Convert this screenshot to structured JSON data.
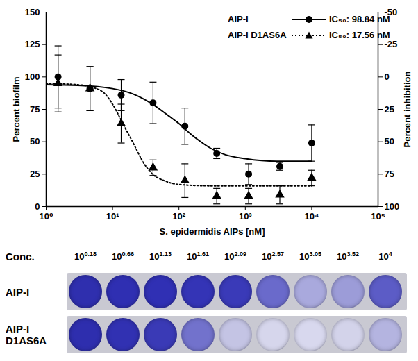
{
  "chart_data": {
    "type": "scatter",
    "x_label": "S. epidermidis AIPs [nM]",
    "y_label": "Percent biofilm",
    "y2_label": "Percent inhibition",
    "log": "x",
    "grid": false,
    "legend": "top-right",
    "xlim": [
      1,
      100000
    ],
    "xticks": [
      {
        "value": 1,
        "label": "10⁰"
      },
      {
        "value": 10,
        "label": "10¹"
      },
      {
        "value": 100,
        "label": "10²"
      },
      {
        "value": 1000,
        "label": "10³"
      },
      {
        "value": 10000,
        "label": "10⁴"
      },
      {
        "value": 100000,
        "label": "10⁵"
      }
    ],
    "ylim": [
      0,
      150
    ],
    "yticks": [
      0,
      50,
      100,
      150,
      25,
      75,
      125
    ],
    "y2lim": [
      100,
      -50
    ],
    "y2ticks": [
      -50,
      -25,
      0,
      25,
      50,
      75,
      100
    ],
    "x": [
      1.51,
      4.57,
      13.49,
      40.74,
      123.0,
      371.5,
      1122,
      3311,
      10000
    ],
    "series": [
      {
        "name": "AIP-I",
        "color": "#000000",
        "marker": "circle",
        "line_style": "solid",
        "ic50_label": "IC₅₀: 98.84 nM",
        "values": [
          100,
          91,
          86,
          80,
          62,
          41,
          25,
          31,
          49
        ],
        "errors": [
          24,
          17,
          12,
          16,
          14,
          4,
          8,
          3,
          14
        ],
        "fit": {
          "x": [
            1,
            3,
            10,
            20,
            40,
            70,
            100,
            150,
            200,
            300,
            500,
            1000,
            3000,
            10000
          ],
          "values": [
            94,
            93.5,
            91,
            87,
            79,
            70,
            64,
            56,
            51,
            45,
            40,
            37,
            35,
            35
          ]
        }
      },
      {
        "name": "AIP-I D1AS6A",
        "color": "#000000",
        "marker": "triangle",
        "line_style": "dotted",
        "ic50_label": "IC₅₀: 17.56 nM",
        "values": [
          95,
          91,
          64,
          30,
          20,
          8,
          8,
          9,
          22
        ],
        "errors": [
          22,
          17,
          15,
          6,
          13,
          6,
          6,
          7,
          6
        ],
        "fit": {
          "x": [
            1,
            3,
            5,
            8,
            10,
            15,
            20,
            30,
            40,
            60,
            100,
            300,
            1000,
            10000
          ],
          "values": [
            95,
            94,
            92,
            86,
            79,
            62,
            50,
            33,
            25,
            20,
            17,
            16,
            16,
            16
          ]
        }
      }
    ]
  },
  "plate": {
    "header": "Conc.",
    "concentrations": [
      {
        "base": "10",
        "exponent": "0.18"
      },
      {
        "base": "10",
        "exponent": "0.66"
      },
      {
        "base": "10",
        "exponent": "1.13"
      },
      {
        "base": "10",
        "exponent": "1.61"
      },
      {
        "base": "10",
        "exponent": "2.09"
      },
      {
        "base": "10",
        "exponent": "2.57"
      },
      {
        "base": "10",
        "exponent": "3.05"
      },
      {
        "base": "10",
        "exponent": "3.52"
      },
      {
        "base": "10",
        "exponent": "4"
      }
    ],
    "rows": [
      {
        "label": "AIP-I",
        "colors": [
          "#2f2fae",
          "#2f2fb2",
          "#3030b4",
          "#3434b6",
          "#3a3ab8",
          "#6a6acb",
          "#a9a9dd",
          "#9c9cd8",
          "#5c5cc6"
        ]
      },
      {
        "label": "AIP-I\nD1AS6A",
        "colors": [
          "#2e2eae",
          "#3131b2",
          "#3a3ab6",
          "#7272cc",
          "#c4c4e4",
          "#d6d6ec",
          "#d8d8ee",
          "#d3d3ea",
          "#b4b4e0"
        ]
      }
    ]
  }
}
